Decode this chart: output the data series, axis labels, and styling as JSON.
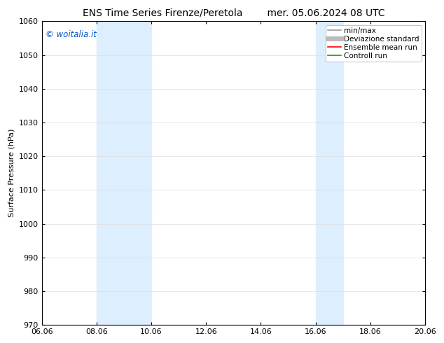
{
  "title_left": "ENS Time Series Firenze/Peretola",
  "title_right": "mer. 05.06.2024 08 UTC",
  "ylabel": "Surface Pressure (hPa)",
  "ylim": [
    970,
    1060
  ],
  "yticks": [
    970,
    980,
    990,
    1000,
    1010,
    1020,
    1030,
    1040,
    1050,
    1060
  ],
  "x_tick_labels": [
    "06.06",
    "08.06",
    "10.06",
    "12.06",
    "14.06",
    "16.06",
    "18.06",
    "20.06"
  ],
  "x_tick_positions": [
    0,
    48,
    96,
    144,
    192,
    240,
    288,
    336
  ],
  "xlim": [
    0,
    336
  ],
  "shaded_bands": [
    {
      "x_start": 48,
      "x_end": 96,
      "color": "#ddeeff"
    },
    {
      "x_start": 240,
      "x_end": 264,
      "color": "#ddeeff"
    }
  ],
  "watermark": "© woitalia.it",
  "watermark_color": "#0055cc",
  "legend_items": [
    {
      "label": "min/max",
      "color": "#999999",
      "lw": 1.2,
      "ls": "-"
    },
    {
      "label": "Deviazione standard",
      "color": "#bbbbbb",
      "lw": 5,
      "ls": "-"
    },
    {
      "label": "Ensemble mean run",
      "color": "#ff0000",
      "lw": 1.2,
      "ls": "-"
    },
    {
      "label": "Controll run",
      "color": "#00aa00",
      "lw": 1.2,
      "ls": "-"
    }
  ],
  "background_color": "#ffffff",
  "grid_color": "#dddddd",
  "title_fontsize": 10,
  "tick_fontsize": 8,
  "ylabel_fontsize": 8,
  "legend_fontsize": 7.5
}
